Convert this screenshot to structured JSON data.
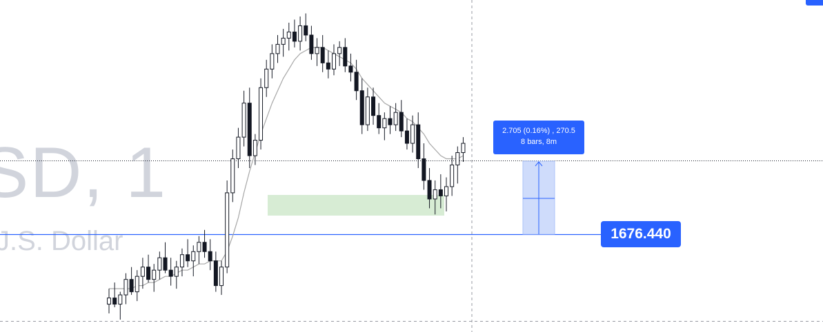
{
  "watermark": {
    "symbol": "SD, 1",
    "description": "J.S. Dollar"
  },
  "measure": {
    "line1": "2.705 (0.16%) , 270.5",
    "line2": "8 bars, 8m"
  },
  "price_tag": "1676.440",
  "colors": {
    "accent": "#2962ff",
    "candle": "#131722",
    "ma_line": "#a6a6a6",
    "zone": "#d7ecd4",
    "measure_fill": "#cfdcfb",
    "watermark": "#d1d4dc"
  },
  "chart_data": {
    "type": "candlestick",
    "timeframe": "1",
    "price_axis_visible": false,
    "current_price": 1676.44,
    "measure_tool": {
      "price_change": 2.705,
      "percent_change": 0.16,
      "ticks": 270.5,
      "bars": 8,
      "duration": "8m"
    },
    "series": [
      {
        "name": "candles",
        "ohlc": [
          [
            1672.9,
            1673.4,
            1672.6,
            1673.1
          ],
          [
            1673.1,
            1673.6,
            1672.8,
            1672.9
          ],
          [
            1672.9,
            1673.3,
            1672.4,
            1673.2
          ],
          [
            1673.2,
            1673.9,
            1672.9,
            1673.7
          ],
          [
            1673.7,
            1674.1,
            1673.2,
            1673.3
          ],
          [
            1673.3,
            1674.0,
            1673.0,
            1673.8
          ],
          [
            1673.8,
            1674.4,
            1673.4,
            1674.1
          ],
          [
            1674.1,
            1674.5,
            1673.6,
            1673.7
          ],
          [
            1673.7,
            1674.2,
            1673.3,
            1674.0
          ],
          [
            1674.0,
            1674.6,
            1673.7,
            1674.4
          ],
          [
            1674.4,
            1674.9,
            1673.9,
            1674.0
          ],
          [
            1674.0,
            1674.4,
            1673.5,
            1673.8
          ],
          [
            1673.8,
            1674.3,
            1673.4,
            1674.1
          ],
          [
            1674.1,
            1674.7,
            1673.8,
            1674.5
          ],
          [
            1674.5,
            1675.0,
            1674.1,
            1674.3
          ],
          [
            1674.3,
            1674.8,
            1673.8,
            1674.6
          ],
          [
            1674.6,
            1675.1,
            1674.2,
            1674.9
          ],
          [
            1674.9,
            1675.3,
            1674.4,
            1674.6
          ],
          [
            1674.6,
            1675.0,
            1674.0,
            1674.3
          ],
          [
            1674.3,
            1674.6,
            1673.3,
            1673.5
          ],
          [
            1673.5,
            1674.3,
            1673.2,
            1674.1
          ],
          [
            1674.1,
            1676.9,
            1673.9,
            1676.5
          ],
          [
            1676.5,
            1677.9,
            1676.2,
            1677.6
          ],
          [
            1677.6,
            1678.6,
            1677.3,
            1678.3
          ],
          [
            1678.3,
            1679.8,
            1678.0,
            1679.4
          ],
          [
            1679.4,
            1679.9,
            1677.3,
            1677.7
          ],
          [
            1677.7,
            1678.4,
            1677.4,
            1678.2
          ],
          [
            1678.2,
            1680.2,
            1677.9,
            1679.9
          ],
          [
            1679.9,
            1680.8,
            1679.6,
            1680.5
          ],
          [
            1680.5,
            1681.3,
            1680.2,
            1681.0
          ],
          [
            1681.0,
            1681.6,
            1680.7,
            1681.3
          ],
          [
            1681.3,
            1681.8,
            1680.9,
            1681.5
          ],
          [
            1681.5,
            1682.0,
            1681.1,
            1681.7
          ],
          [
            1681.7,
            1682.1,
            1681.2,
            1681.4
          ],
          [
            1681.4,
            1682.2,
            1681.1,
            1681.9
          ],
          [
            1681.9,
            1682.3,
            1681.4,
            1681.6
          ],
          [
            1681.6,
            1681.9,
            1680.8,
            1681.0
          ],
          [
            1681.0,
            1681.5,
            1680.6,
            1681.2
          ],
          [
            1681.2,
            1681.6,
            1680.4,
            1680.7
          ],
          [
            1680.7,
            1681.1,
            1680.2,
            1680.5
          ],
          [
            1680.5,
            1681.3,
            1680.3,
            1681.0
          ],
          [
            1681.0,
            1681.4,
            1680.6,
            1681.2
          ],
          [
            1681.2,
            1681.5,
            1680.4,
            1680.6
          ],
          [
            1680.6,
            1681.0,
            1680.1,
            1680.4
          ],
          [
            1680.4,
            1680.8,
            1679.5,
            1679.8
          ],
          [
            1679.8,
            1680.2,
            1678.4,
            1678.7
          ],
          [
            1678.7,
            1679.9,
            1678.5,
            1679.6
          ],
          [
            1679.6,
            1679.9,
            1678.7,
            1679.0
          ],
          [
            1679.0,
            1679.4,
            1678.4,
            1678.6
          ],
          [
            1678.6,
            1679.1,
            1678.2,
            1678.9
          ],
          [
            1678.9,
            1679.3,
            1678.4,
            1678.7
          ],
          [
            1678.7,
            1679.4,
            1678.5,
            1679.1
          ],
          [
            1679.1,
            1679.5,
            1678.3,
            1678.5
          ],
          [
            1678.5,
            1678.9,
            1677.9,
            1678.1
          ],
          [
            1678.1,
            1679.0,
            1677.8,
            1678.7
          ],
          [
            1678.7,
            1679.1,
            1677.3,
            1677.6
          ],
          [
            1677.6,
            1678.1,
            1676.6,
            1676.9
          ],
          [
            1676.9,
            1677.3,
            1676.0,
            1676.3
          ],
          [
            1676.3,
            1676.9,
            1675.8,
            1676.6
          ],
          [
            1676.6,
            1677.1,
            1676.0,
            1676.4
          ],
          [
            1676.4,
            1677.0,
            1675.9,
            1676.7
          ],
          [
            1676.7,
            1677.7,
            1676.4,
            1677.4
          ],
          [
            1677.4,
            1678.0,
            1676.8,
            1677.8
          ],
          [
            1677.8,
            1678.3,
            1677.5,
            1678.1
          ]
        ]
      },
      {
        "name": "moving-average",
        "values": [
          1673.4,
          1673.4,
          1673.4,
          1673.4,
          1673.4,
          1673.5,
          1673.5,
          1673.6,
          1673.6,
          1673.7,
          1673.8,
          1673.8,
          1673.9,
          1674.0,
          1674.0,
          1674.1,
          1674.2,
          1674.2,
          1674.3,
          1674.3,
          1674.3,
          1674.6,
          1675.1,
          1675.7,
          1676.5,
          1677.2,
          1677.8,
          1678.4,
          1678.9,
          1679.4,
          1679.8,
          1680.2,
          1680.5,
          1680.8,
          1681.0,
          1681.1,
          1681.2,
          1681.2,
          1681.2,
          1681.1,
          1681.0,
          1680.9,
          1680.8,
          1680.7,
          1680.5,
          1680.2,
          1680.0,
          1679.8,
          1679.6,
          1679.4,
          1679.3,
          1679.2,
          1679.1,
          1678.9,
          1678.8,
          1678.6,
          1678.4,
          1678.1,
          1677.9,
          1677.7,
          1677.6,
          1677.6,
          1677.6,
          1677.7
        ]
      }
    ]
  }
}
